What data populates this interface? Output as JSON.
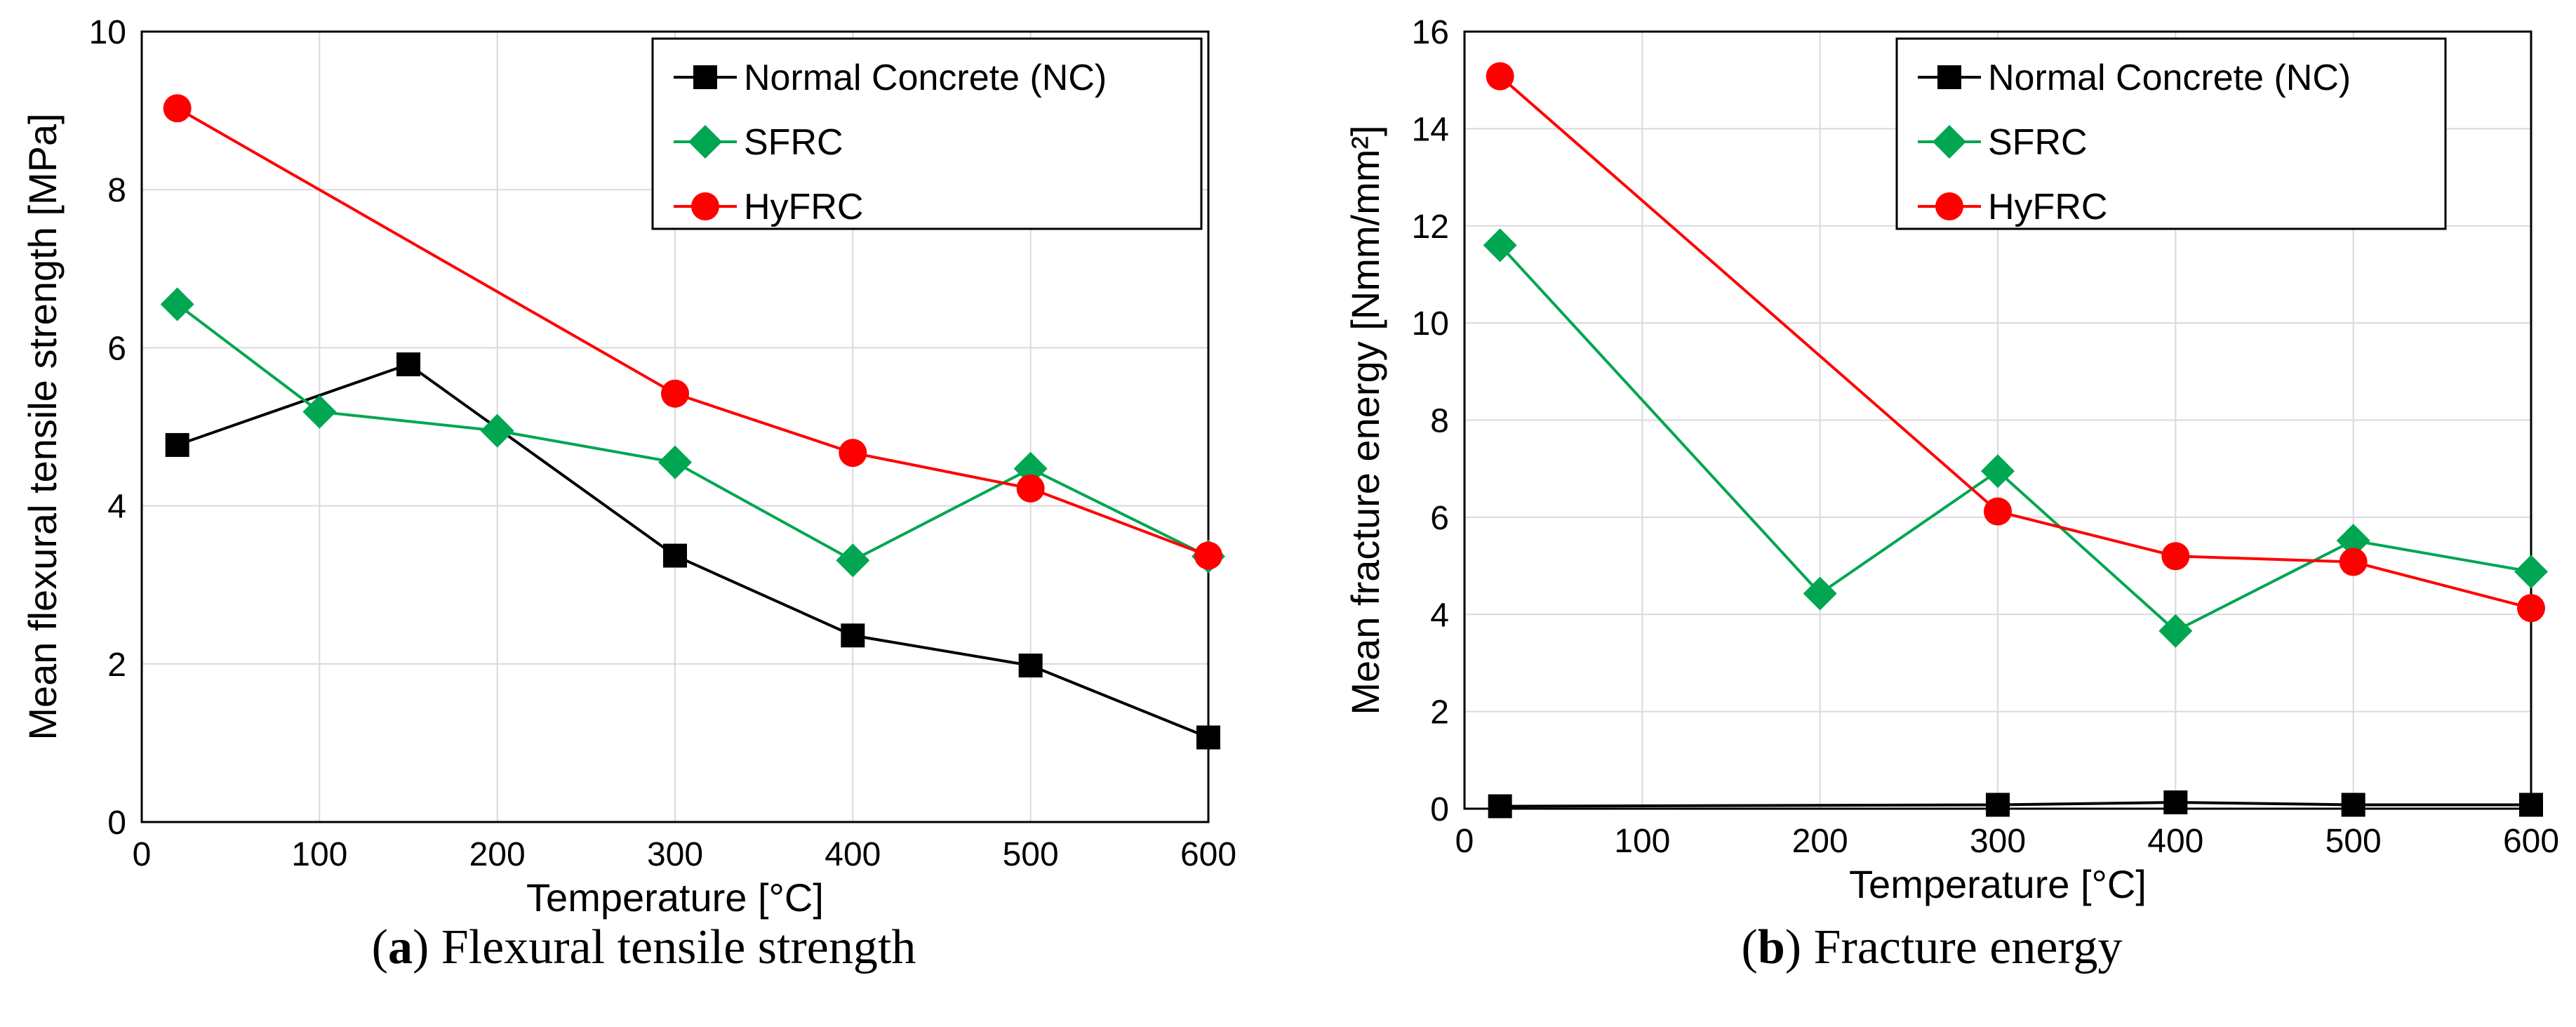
{
  "chart_data": [
    {
      "type": "line",
      "xlabel": "Temperature [°C]",
      "ylabel": "Mean flexural tensile strength [MPa]",
      "xlim": [
        0,
        600
      ],
      "ylim": [
        0,
        10
      ],
      "xticks": [
        "0",
        "100",
        "200",
        "300",
        "400",
        "500",
        "600"
      ],
      "yticks": [
        "0",
        "2",
        "4",
        "6",
        "8",
        "10"
      ],
      "grid": true,
      "legend_position": "top-right",
      "caption_letter": "a",
      "caption_text": "Flexural tensile strength",
      "series": [
        {
          "name": "Normal Concrete (NC)",
          "color": "#000000",
          "marker": "square",
          "x": [
            20,
            150,
            300,
            400,
            500,
            600
          ],
          "y": [
            4.77,
            5.79,
            3.37,
            2.36,
            1.98,
            1.07
          ]
        },
        {
          "name": "SFRC",
          "color": "#00a651",
          "marker": "diamond",
          "x": [
            20,
            100,
            200,
            300,
            400,
            500,
            600
          ],
          "y": [
            6.55,
            5.19,
            4.95,
            4.55,
            3.31,
            4.47,
            3.36
          ]
        },
        {
          "name": "HyFRC",
          "color": "#ff0000",
          "marker": "circle",
          "x": [
            20,
            300,
            400,
            500,
            600
          ],
          "y": [
            9.03,
            5.42,
            4.67,
            4.22,
            3.37
          ]
        }
      ]
    },
    {
      "type": "line",
      "xlabel": "Temperature [°C]",
      "ylabel": "Mean fracture energy [Nmm/mm²]",
      "xlim": [
        0,
        600
      ],
      "ylim": [
        0,
        16
      ],
      "xticks": [
        "0",
        "100",
        "200",
        "300",
        "400",
        "500",
        "600"
      ],
      "yticks": [
        "0",
        "2",
        "4",
        "6",
        "8",
        "10",
        "12",
        "14",
        "16"
      ],
      "grid": true,
      "legend_position": "top-right",
      "caption_letter": "b",
      "caption_text": "Fracture energy",
      "series": [
        {
          "name": "Normal Concrete (NC)",
          "color": "#000000",
          "marker": "square",
          "x": [
            20,
            300,
            400,
            500,
            600
          ],
          "y": [
            0.05,
            0.08,
            0.13,
            0.08,
            0.08
          ]
        },
        {
          "name": "SFRC",
          "color": "#00a651",
          "marker": "diamond",
          "x": [
            20,
            200,
            300,
            400,
            500,
            600
          ],
          "y": [
            11.6,
            4.43,
            6.95,
            3.66,
            5.52,
            4.88
          ]
        },
        {
          "name": "HyFRC",
          "color": "#ff0000",
          "marker": "circle",
          "x": [
            20,
            300,
            400,
            500,
            600
          ],
          "y": [
            15.08,
            6.12,
            5.2,
            5.08,
            4.13
          ]
        }
      ]
    }
  ]
}
